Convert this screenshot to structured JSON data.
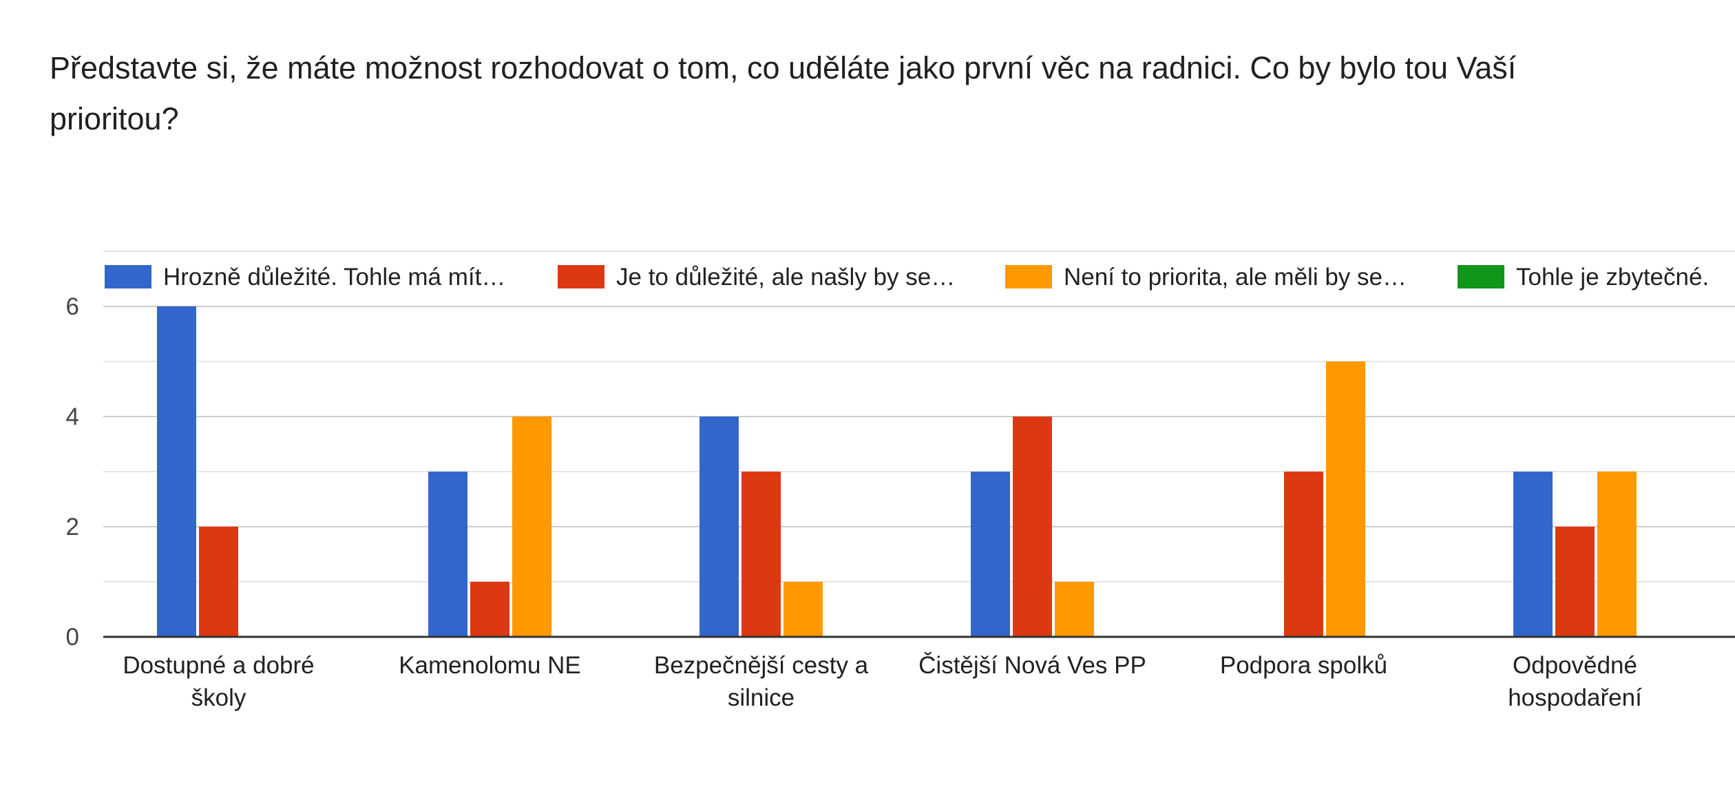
{
  "question": "Představte si, že máte možnost rozhodovat o tom, co uděláte jako první věc na radnici. Co by bylo tou Vaší prioritou?",
  "chart_data": {
    "type": "bar",
    "title": "",
    "xlabel": "",
    "ylabel": "",
    "ylim": [
      0,
      6
    ],
    "yticks": [
      "0",
      "2",
      "4",
      "6"
    ],
    "grid": true,
    "legend_position": "top",
    "categories": [
      [
        "Dostupné a dobré",
        "školy"
      ],
      [
        "Kamenolomu NE"
      ],
      [
        "Bezpečnější cesty a",
        "silnice"
      ],
      [
        "Čistější Nová Ves PP"
      ],
      [
        "Podpora spolků"
      ],
      [
        "Odpovědné",
        "hospodaření"
      ]
    ],
    "series": [
      {
        "name": "Hrozně důležité. Tohle má mít…",
        "color": "#3366cc",
        "values": [
          6,
          3,
          4,
          3,
          0,
          3
        ]
      },
      {
        "name": "Je to důležité, ale našly by se…",
        "color": "#dc3912",
        "values": [
          2,
          1,
          3,
          4,
          3,
          2
        ]
      },
      {
        "name": "Není to priorita, ale měli by se…",
        "color": "#ff9900",
        "values": [
          0,
          4,
          1,
          1,
          5,
          3
        ]
      },
      {
        "name": "Tohle je zbytečné.",
        "color": "#109618",
        "values": [
          0,
          0,
          0,
          0,
          0,
          0
        ]
      }
    ]
  }
}
